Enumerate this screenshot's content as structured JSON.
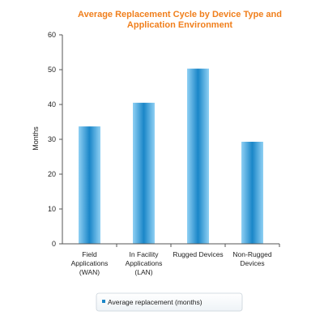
{
  "colors": {
    "title": "#f07f1c",
    "bar_light": "#8fd0f4",
    "bar_dark": "#1a86c8",
    "axis": "#555555"
  },
  "chart_data": {
    "type": "bar",
    "title": "Average Replacement Cycle by Device Type and Application Environment",
    "title_lines": [
      "Average Replacement Cycle by Device Type and",
      "Application Environment"
    ],
    "xlabel": "",
    "ylabel": "Months",
    "ylim": [
      0,
      60
    ],
    "yticks": [
      0,
      10,
      20,
      30,
      40,
      50,
      60
    ],
    "grid": false,
    "legend_position": "bottom",
    "categories": [
      [
        "Field",
        "Applications",
        "(WAN)"
      ],
      [
        "In Facility",
        "Applications",
        "(LAN)"
      ],
      [
        "Rugged Devices"
      ],
      [
        "Non-Rugged",
        "Devices"
      ]
    ],
    "series": [
      {
        "name": "Average replacement (months)",
        "values": [
          33.7,
          40.5,
          50.3,
          29.3
        ]
      }
    ]
  }
}
